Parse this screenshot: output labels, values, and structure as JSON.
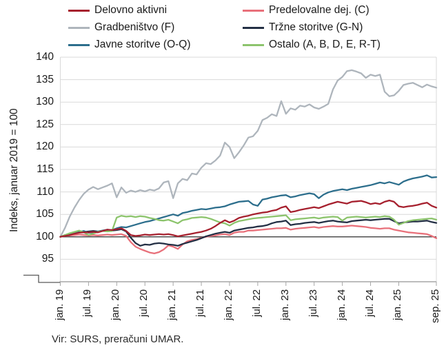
{
  "legend": {
    "items": [
      {
        "label": "Delovno aktivni",
        "color": "#A6202E"
      },
      {
        "label": "Predelovalne dej. (C)",
        "color": "#E8707A"
      },
      {
        "label": "Gradbeništvo (F)",
        "color": "#AEB5BC"
      },
      {
        "label": "Tržne storitve (G-N)",
        "color": "#232F44"
      },
      {
        "label": "Javne storitve (O-Q)",
        "color": "#2C6E8C"
      },
      {
        "label": "Ostalo (A, B, D, E, R-T)",
        "color": "#8CC46C"
      }
    ]
  },
  "y_axis": {
    "title": "Indeks, januar 2019 = 100",
    "ticks": [
      95,
      100,
      105,
      110,
      115,
      120,
      125,
      130,
      135,
      140
    ],
    "drawn_min": 90,
    "max": 140,
    "baseline": 100,
    "axis_break": true
  },
  "x_axis": {
    "tick_labels": [
      "jan. 19",
      "jul. 19",
      "jan. 20",
      "jul. 20",
      "jan. 21",
      "jul. 21",
      "jan. 22",
      "jul. 22",
      "jan. 23",
      "jul. 23",
      "jan. 24",
      "jul. 24",
      "jan. 25",
      "sep. 25"
    ],
    "tick_month_index": [
      0,
      6,
      12,
      18,
      24,
      30,
      36,
      42,
      48,
      54,
      60,
      66,
      72,
      80
    ]
  },
  "source": "Vir: SURS, preračuni UMAR.",
  "chart_data": {
    "type": "line",
    "title": "",
    "xlabel": "",
    "ylabel": "Indeks, januar 2019 = 100",
    "ylim": [
      90,
      140
    ],
    "grid": true,
    "baseline_value": 100,
    "x_unit": "month",
    "x_range": "jan. 19 – sep. 25 (81 monthly values)",
    "legend_position": "top",
    "series": [
      {
        "name": "Gradbeništvo (F)",
        "color": "#AEB5BC",
        "values": [
          100,
          102,
          104.5,
          106.5,
          108.2,
          109.6,
          110.5,
          111.1,
          110.6,
          111,
          111.4,
          111.9,
          108.8,
          111,
          109.8,
          110.3,
          110,
          110.4,
          110.1,
          110.5,
          110.3,
          110.8,
          112.1,
          112.4,
          108.6,
          111.9,
          112.9,
          112.6,
          114.1,
          113.9,
          115.4,
          116.4,
          116.2,
          117,
          118.1,
          121,
          120,
          117.5,
          118.8,
          120.3,
          122.1,
          122.4,
          123.6,
          126,
          126.5,
          127.3,
          126.9,
          130.2,
          127.4,
          128.6,
          128.3,
          129.2,
          129,
          129.5,
          128.8,
          128.5,
          129,
          129.6,
          132.8,
          134.8,
          135.6,
          136.9,
          137.1,
          136.8,
          136.4,
          135.4,
          136.1,
          135.8,
          136.1,
          132.3,
          131.3,
          131.5,
          132.5,
          133.8,
          134.1,
          134.3,
          133.8,
          133.3,
          133.9,
          133.5,
          133.2
        ]
      },
      {
        "name": "Predelovalne dej. (C)",
        "color": "#E8707A",
        "values": [
          100,
          100.2,
          100.3,
          100.4,
          100.5,
          100.4,
          100.3,
          100.4,
          100.3,
          100.4,
          100.5,
          100.4,
          100.5,
          100.6,
          100.2,
          98.8,
          97.8,
          97.3,
          96.9,
          96.5,
          96.3,
          96.6,
          97.2,
          98.1,
          97.8,
          97.3,
          98.3,
          99,
          99.3,
          99.5,
          99.8,
          100,
          100.2,
          100.3,
          100.5,
          100.6,
          100.4,
          100.9,
          101.1,
          101.1,
          101.4,
          101.4,
          101.5,
          101.6,
          101.7,
          101.8,
          101.9,
          101.9,
          102,
          101.6,
          101.8,
          101.9,
          102,
          102.1,
          102.2,
          102,
          102.2,
          102.3,
          102.4,
          102.3,
          102.3,
          102.4,
          102.5,
          102.4,
          102.3,
          102.2,
          102,
          101.9,
          101.8,
          101.9,
          101.9,
          101.6,
          101.4,
          101.2,
          101,
          100.9,
          100.8,
          100.7,
          100.6,
          100.2,
          99.7
        ]
      },
      {
        "name": "Tržne storitve (G-N)",
        "color": "#232F44",
        "values": [
          100,
          100.3,
          100.6,
          100.8,
          101,
          101.1,
          101.2,
          101.3,
          101.2,
          101.4,
          101.5,
          101.4,
          101.5,
          101.7,
          101.2,
          99.8,
          98.6,
          98,
          98.3,
          98.2,
          98.5,
          98.6,
          98.5,
          98.3,
          98.2,
          98,
          98.4,
          98.7,
          99,
          99.3,
          99.7,
          100.1,
          100.4,
          100.7,
          100.9,
          101.1,
          100.9,
          101.4,
          101.6,
          101.8,
          102,
          102.1,
          102.3,
          102.4,
          102.6,
          103,
          103.3,
          103.4,
          103.6,
          102.6,
          102.8,
          102.9,
          103.1,
          103.2,
          103.3,
          103.1,
          103.3,
          103.5,
          103.6,
          103.4,
          103.3,
          103.2,
          103.5,
          103.6,
          103.7,
          103.8,
          103.7,
          103.8,
          103.9,
          104,
          104,
          103.5,
          103,
          103.2,
          103.3,
          103.4,
          103.4,
          103.5,
          103.6,
          103.3,
          103.1
        ]
      },
      {
        "name": "Javne storitve (O-Q)",
        "color": "#2C6E8C",
        "values": [
          100,
          100.4,
          100.7,
          100.9,
          101.1,
          101.3,
          100.9,
          101,
          101.2,
          101.4,
          101.6,
          101.5,
          101.9,
          102.2,
          102.1,
          102.4,
          102.7,
          103,
          103.3,
          103.5,
          103.8,
          104.1,
          104.4,
          104.7,
          105,
          104.7,
          105.3,
          105.5,
          105.8,
          106,
          106.2,
          106.1,
          106.3,
          106.5,
          106.6,
          106.8,
          107.2,
          107.5,
          107.8,
          107.9,
          108,
          107.2,
          106.9,
          108.3,
          108.5,
          108.8,
          109,
          109.2,
          109.3,
          108.8,
          109,
          109.3,
          109.5,
          109.7,
          109.5,
          108.6,
          109.4,
          109.9,
          110.2,
          110.4,
          110.6,
          110.4,
          110.7,
          110.9,
          111.1,
          111.3,
          111.5,
          111.8,
          112.1,
          111.9,
          112.2,
          111.9,
          111.6,
          112.3,
          112.7,
          113,
          113.2,
          113.4,
          113.7,
          113.2,
          113.3
        ]
      },
      {
        "name": "Ostalo (A, B, D, E, R-T)",
        "color": "#8CC46C",
        "values": [
          100,
          100.4,
          100.8,
          101.1,
          101.4,
          101,
          100.4,
          100.7,
          101.1,
          101.3,
          101.2,
          101.3,
          104.3,
          104.7,
          104.5,
          104.6,
          104.4,
          104.6,
          104.5,
          104.2,
          104,
          103.7,
          103.6,
          103.8,
          103.4,
          103,
          103.7,
          103.9,
          104.2,
          104.3,
          104.4,
          104.3,
          104,
          103.6,
          103.2,
          103,
          102.5,
          103.1,
          103.5,
          103.7,
          103.9,
          104.1,
          104.2,
          104.3,
          104.4,
          104.5,
          104.6,
          104.7,
          104.8,
          103.7,
          103.9,
          104,
          104.1,
          104.2,
          104.3,
          104.1,
          104.3,
          104.4,
          104.5,
          104.4,
          103.6,
          104.3,
          104.4,
          104.5,
          104.4,
          104.3,
          104.4,
          104.5,
          104.4,
          104.6,
          104.5,
          103.8,
          102.7,
          103.1,
          103.5,
          103.7,
          103.8,
          103.9,
          104,
          104.1,
          103.8
        ]
      },
      {
        "name": "Delovno aktivni",
        "color": "#A6202E",
        "values": [
          100,
          100.2,
          100.4,
          100.7,
          100.9,
          101,
          101,
          101.1,
          101,
          101.3,
          101.6,
          101.5,
          101.7,
          101.9,
          101.3,
          100.4,
          100.2,
          100.3,
          100.5,
          100.4,
          100.5,
          100.6,
          100.5,
          100.6,
          100.4,
          100.1,
          100.3,
          100.5,
          100.7,
          100.9,
          101.1,
          101.4,
          101.8,
          102.4,
          103.1,
          103.7,
          103.2,
          103.6,
          104.2,
          104.5,
          104.7,
          105,
          105.2,
          105.4,
          105.5,
          105.8,
          106,
          106.5,
          106.8,
          105.5,
          105.7,
          106,
          106.2,
          106.4,
          106.6,
          106.4,
          106.8,
          107.2,
          107.5,
          107.8,
          107.6,
          107.4,
          107.8,
          107.9,
          108,
          107.7,
          107.3,
          107.5,
          107.3,
          107.8,
          108.1,
          107.8,
          106.8,
          106.6,
          106.8,
          106.9,
          107.1,
          107.4,
          107.6,
          106.9,
          106.5
        ]
      }
    ]
  }
}
